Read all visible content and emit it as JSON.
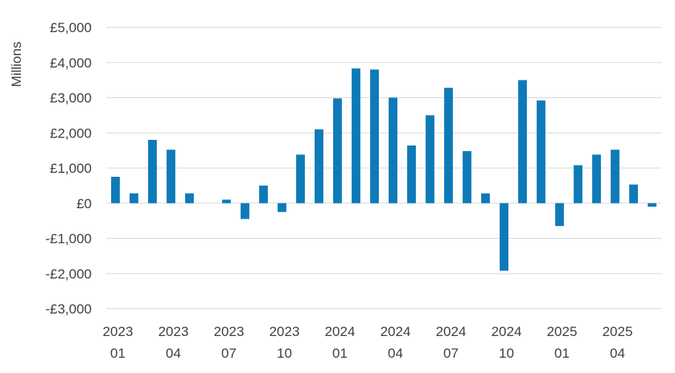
{
  "chart_data": {
    "type": "bar",
    "title": "",
    "xlabel": "",
    "ylabel": "Millions",
    "ylim": [
      -3000,
      5000
    ],
    "yticks": [
      5000,
      4000,
      3000,
      2000,
      1000,
      0,
      -1000,
      -2000,
      -3000
    ],
    "ytick_labels": [
      "£5,000",
      "£4,000",
      "£3,000",
      "£2,000",
      "£1,000",
      "£0",
      "-£1,000",
      "-£2,000",
      "-£3,000"
    ],
    "grid": true,
    "bar_color": "#0e7ab8",
    "categories": [
      "2023-01",
      "2023-02",
      "2023-03",
      "2023-04",
      "2023-05",
      "2023-06",
      "2023-07",
      "2023-08",
      "2023-09",
      "2023-10",
      "2023-11",
      "2023-12",
      "2024-01",
      "2024-02",
      "2024-03",
      "2024-04",
      "2024-05",
      "2024-06",
      "2024-07",
      "2024-08",
      "2024-09",
      "2024-10",
      "2024-11",
      "2024-12",
      "2025-01",
      "2025-02",
      "2025-03",
      "2025-04",
      "2025-05",
      "2025-06"
    ],
    "values": [
      750,
      280,
      1800,
      1520,
      280,
      0,
      100,
      -450,
      500,
      -250,
      1380,
      2100,
      2980,
      3830,
      3800,
      3000,
      1640,
      2500,
      3280,
      1480,
      280,
      -1920,
      3500,
      2920,
      -650,
      1080,
      1380,
      1520,
      530,
      -100
    ],
    "x_tick_labels": [
      {
        "index": 0,
        "year": "2023",
        "month": "01"
      },
      {
        "index": 3,
        "year": "2023",
        "month": "04"
      },
      {
        "index": 6,
        "year": "2023",
        "month": "07"
      },
      {
        "index": 9,
        "year": "2023",
        "month": "10"
      },
      {
        "index": 12,
        "year": "2024",
        "month": "01"
      },
      {
        "index": 15,
        "year": "2024",
        "month": "04"
      },
      {
        "index": 18,
        "year": "2024",
        "month": "07"
      },
      {
        "index": 21,
        "year": "2024",
        "month": "10"
      },
      {
        "index": 24,
        "year": "2025",
        "month": "01"
      },
      {
        "index": 27,
        "year": "2025",
        "month": "04"
      }
    ]
  }
}
